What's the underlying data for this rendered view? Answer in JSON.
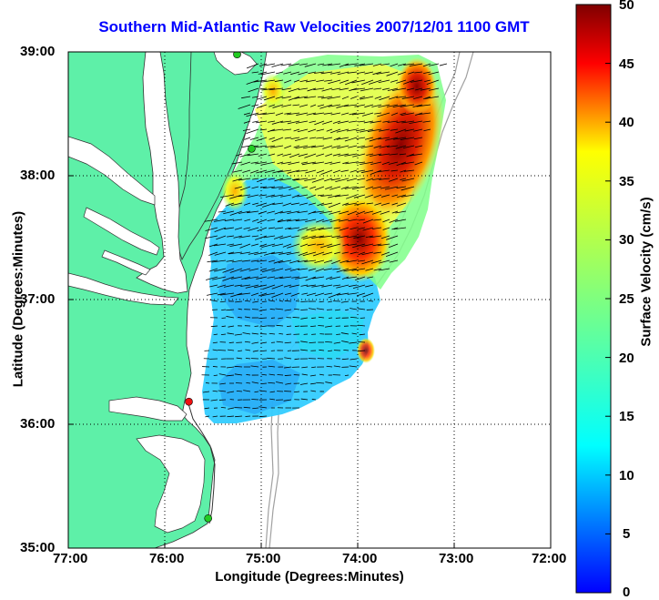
{
  "title": "Southern Mid-Atlantic Raw Velocities 2007/12/01 1100 GMT",
  "xlabel": "Longitude (Degrees:Minutes)",
  "ylabel": "Latitude (Degrees:Minutes)",
  "x_ticks": [
    "77:00",
    "76:00",
    "75:00",
    "74:00",
    "73:00",
    "72:00"
  ],
  "y_ticks": [
    "39:00",
    "38:00",
    "37:00",
    "36:00",
    "35:00"
  ],
  "colorbar": {
    "label": "Surface Velocity (cm/s)",
    "ticks": [
      "50",
      "45",
      "40",
      "35",
      "30",
      "25",
      "20",
      "15",
      "10",
      "5",
      "0"
    ],
    "range": [
      0,
      50
    ],
    "colormap": "jet"
  },
  "colors": {
    "land": "#5ef0a8",
    "ocean": "#ffffff",
    "title": "#0000ff",
    "grid": "#000000",
    "bathymetry": "#999999"
  },
  "map": {
    "lon_range": [
      -77,
      -72
    ],
    "lat_range": [
      35,
      39
    ],
    "grid": "dotted",
    "stations": [
      {
        "lon": -75.25,
        "lat": 38.98,
        "color": "#22cc22"
      },
      {
        "lon": -75.1,
        "lat": 38.22,
        "color": "#22cc22"
      },
      {
        "lon": -75.75,
        "lat": 36.18,
        "color": "#ee1111"
      },
      {
        "lon": -75.55,
        "lat": 35.24,
        "color": "#22cc22"
      }
    ]
  }
}
